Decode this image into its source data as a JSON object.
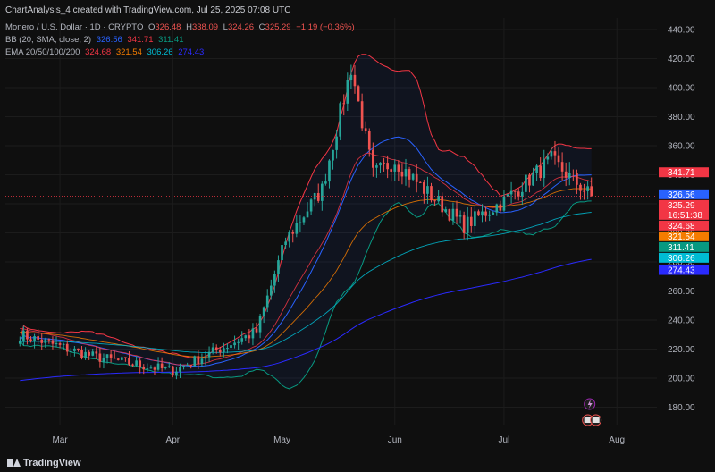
{
  "header": {
    "topline": "ChartAnalysis_4 created with TradingView.com, Jul 25, 2025 07:08 UTC",
    "symbol": "Monero / U.S. Dollar · 1D · CRYPTO",
    "ohlc": {
      "o_label": "O",
      "o": "326.48",
      "h_label": "H",
      "h": "338.09",
      "l_label": "L",
      "l": "324.26",
      "c_label": "C",
      "c": "325.29",
      "change": "−1.19 (−0.36%)"
    },
    "bb_label": "BB (20, SMA, close, 2)",
    "bb_values": [
      "326.56",
      "341.71",
      "311.41"
    ],
    "ema_label": "EMA 20/50/100/200",
    "ema_values": [
      "324.68",
      "321.54",
      "306.26",
      "274.43"
    ]
  },
  "footer": {
    "brand": "TradingView"
  },
  "colors": {
    "up": "#26a69a",
    "down": "#ef5350",
    "bb_basis": "#2962ff",
    "bb_upper": "#f23645",
    "bb_lower": "#089981",
    "ema20": "#f23645",
    "ema50": "#f57c00",
    "ema100": "#00bcd4",
    "ema200": "#2a2aff"
  },
  "chart_data": {
    "type": "candlestick",
    "x_ticks": [
      "Mar",
      "Apr",
      "May",
      "Jun",
      "Jul",
      "Aug"
    ],
    "y_ticks": [
      180,
      200,
      220,
      240,
      260,
      280,
      300,
      320,
      340,
      360,
      380,
      400,
      420,
      440
    ],
    "ylim": [
      168,
      448
    ],
    "price_badges": [
      {
        "value": "341.71",
        "color": "#f23645"
      },
      {
        "value": "326.56",
        "color": "#2962ff"
      },
      {
        "value": "325.29",
        "sub": "16:51:38",
        "color": "#f23645"
      },
      {
        "value": "324.68",
        "color": "#f23645"
      },
      {
        "value": "321.54",
        "color": "#f57c00"
      },
      {
        "value": "311.41",
        "color": "#089981"
      },
      {
        "value": "306.26",
        "color": "#00bcd4"
      },
      {
        "value": "274.43",
        "color": "#2a2aff"
      }
    ],
    "key_points": [
      {
        "date": "2025-02-18",
        "price": 230
      },
      {
        "date": "2025-03-10",
        "price": 215
      },
      {
        "date": "2025-04-01",
        "price": 205
      },
      {
        "date": "2025-04-24",
        "price": 232
      },
      {
        "date": "2025-05-02",
        "price": 295
      },
      {
        "date": "2025-05-12",
        "price": 330
      },
      {
        "date": "2025-05-20",
        "price": 414
      },
      {
        "date": "2025-05-26",
        "price": 340
      },
      {
        "date": "2025-06-01",
        "price": 350
      },
      {
        "date": "2025-06-09",
        "price": 330
      },
      {
        "date": "2025-06-20",
        "price": 305
      },
      {
        "date": "2025-07-01",
        "price": 322
      },
      {
        "date": "2025-07-14",
        "price": 350
      },
      {
        "date": "2025-07-25",
        "price": 325.29
      }
    ]
  }
}
